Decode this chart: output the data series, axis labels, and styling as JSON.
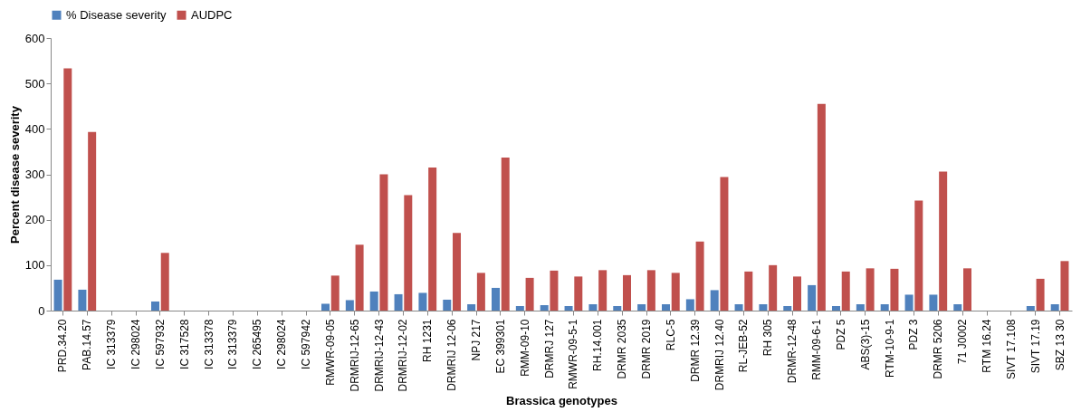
{
  "chart_data": {
    "type": "bar",
    "xlabel": "Brassica genotypes",
    "ylabel": "Percent disease severity",
    "categories": [
      "PRD.34.20",
      "PAB.14.57",
      "IC 313379",
      "IC 298024",
      "IC 597932",
      "IC 317528",
      "IC 313378",
      "IC 313379",
      "IC 265495",
      "IC 298024",
      "IC 597942",
      "RMWR-09-05",
      "DRMRIJ-12-65",
      "DRMRIJ-12-43",
      "DRMRIJ-12-02",
      "RH 1231",
      "DRMRIJ 12-06",
      "NPJ 217",
      "EC 399301",
      "RMM-09-10",
      "DRMRJ 127",
      "RMWR-09-5-1",
      "RH.14.001",
      "DRMR 2035",
      "DRMR 2019",
      "RLC-5",
      "DRMR 12.39",
      "DRMRIJ 12.40",
      "RL-JEB-52",
      "RH 305",
      "DRMR-12-48",
      "RMM-09-6-1",
      "PDZ 5",
      "ABS(3)-15",
      "RTM-10-9-1",
      "PDZ 3",
      "DRMR 5206",
      "71 J0002",
      "RTM 16.24",
      "SIVT 17.108",
      "SIVT 17.19",
      "SBZ 13 30"
    ],
    "series": [
      {
        "name": "% Disease severity",
        "color": "#4f81bd",
        "values": [
          68,
          46,
          0,
          0,
          20,
          0,
          0,
          0,
          0,
          0,
          0,
          15,
          23,
          42,
          36,
          39,
          24,
          14,
          50,
          10,
          12,
          10,
          14,
          10,
          14,
          14,
          25,
          45,
          14,
          14,
          10,
          56,
          10,
          14,
          14,
          35,
          35,
          14,
          0,
          0,
          10,
          14
        ]
      },
      {
        "name": "AUDPC",
        "color": "#c0504d",
        "values": [
          533,
          393,
          0,
          0,
          127,
          0,
          0,
          0,
          0,
          0,
          0,
          77,
          145,
          300,
          254,
          315,
          171,
          83,
          337,
          72,
          88,
          75,
          89,
          78,
          89,
          83,
          152,
          294,
          86,
          100,
          75,
          455,
          86,
          93,
          92,
          242,
          306,
          93,
          0,
          0,
          70,
          109
        ]
      }
    ],
    "ylim": [
      0,
      600
    ],
    "yticks": [
      0,
      100,
      200,
      300,
      400,
      500,
      600
    ],
    "grid": false,
    "legend": "top"
  }
}
